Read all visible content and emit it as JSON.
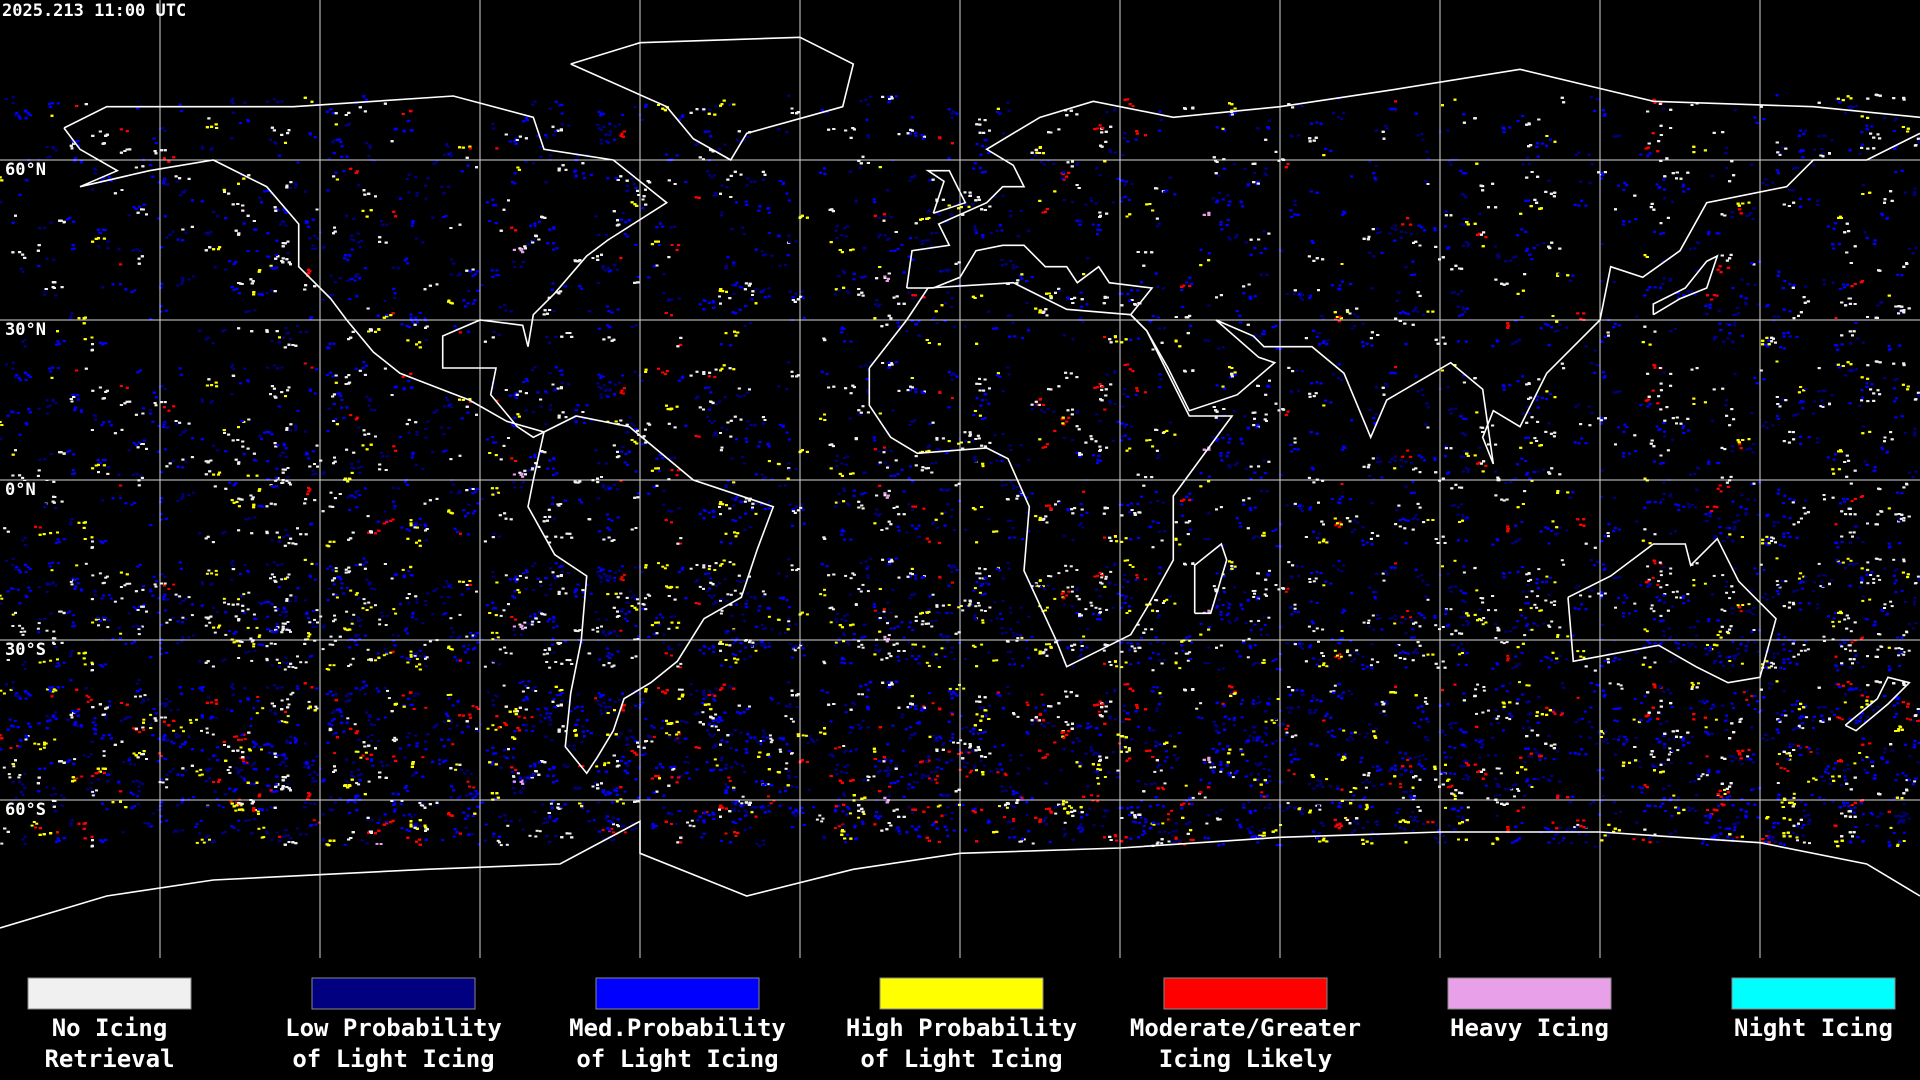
{
  "header": {
    "timestamp": "2025.213 11:00 UTC"
  },
  "lat_labels": [
    "60°N",
    "30°N",
    "0°N",
    "30°S",
    "60°S"
  ],
  "legend": [
    {
      "lines": [
        "No Icing",
        "Retrieval"
      ],
      "color": "#f0f0f0"
    },
    {
      "lines": [
        "Low Probability",
        "of Light Icing"
      ],
      "color": "#000080"
    },
    {
      "lines": [
        "Med.Probability",
        "of Light Icing"
      ],
      "color": "#0000ff"
    },
    {
      "lines": [
        "High Probability",
        "of Light Icing"
      ],
      "color": "#ffff00"
    },
    {
      "lines": [
        "Moderate/Greater",
        "Icing Likely"
      ],
      "color": "#ff0000"
    },
    {
      "lines": [
        "Heavy Icing"
      ],
      "color": "#e8a0e8"
    },
    {
      "lines": [
        "Night Icing"
      ],
      "color": "#00ffff"
    }
  ]
}
